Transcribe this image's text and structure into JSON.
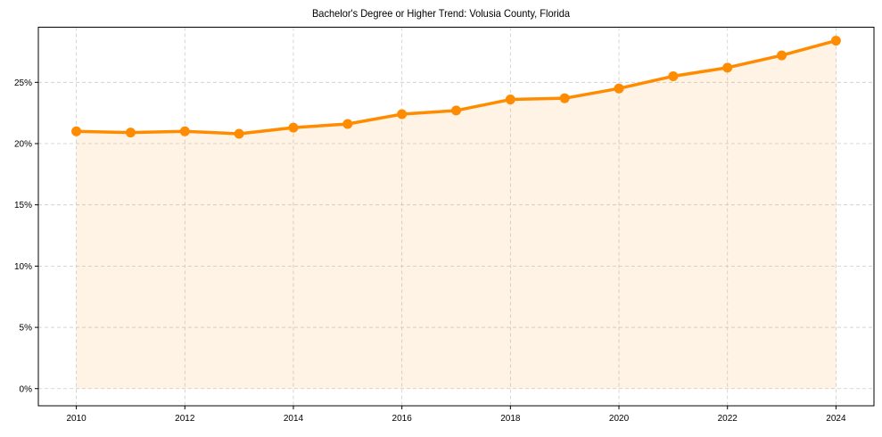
{
  "chart_data": {
    "type": "line",
    "title": "Bachelor's Degree or Higher Trend: Volusia County, Florida",
    "xlabel": "",
    "ylabel": "",
    "x": [
      2010,
      2011,
      2012,
      2013,
      2014,
      2015,
      2016,
      2017,
      2018,
      2019,
      2020,
      2021,
      2022,
      2023,
      2024
    ],
    "series": [
      {
        "name": "Bachelor's Degree or Higher",
        "values": [
          21.0,
          20.9,
          21.0,
          20.8,
          21.3,
          21.6,
          22.4,
          22.7,
          23.6,
          23.7,
          24.5,
          25.5,
          26.2,
          27.2,
          28.4
        ],
        "unit": "%",
        "color": "#ff8c00",
        "fill_color": "#ff8c00",
        "fill_opacity": 0.1,
        "marker": "circle"
      }
    ],
    "xticks": [
      2010,
      2012,
      2014,
      2016,
      2018,
      2020,
      2022,
      2024
    ],
    "xtick_labels": [
      "2010",
      "2012",
      "2014",
      "2016",
      "2018",
      "2020",
      "2022",
      "2024"
    ],
    "yticks": [
      0,
      5,
      10,
      15,
      20,
      25
    ],
    "ytick_labels": [
      "0%",
      "5%",
      "10%",
      "15%",
      "20%",
      "25%"
    ],
    "xlim": [
      2009.3,
      2024.7
    ],
    "ylim": [
      -1.4,
      29.5
    ],
    "grid": true,
    "legend": "none"
  }
}
